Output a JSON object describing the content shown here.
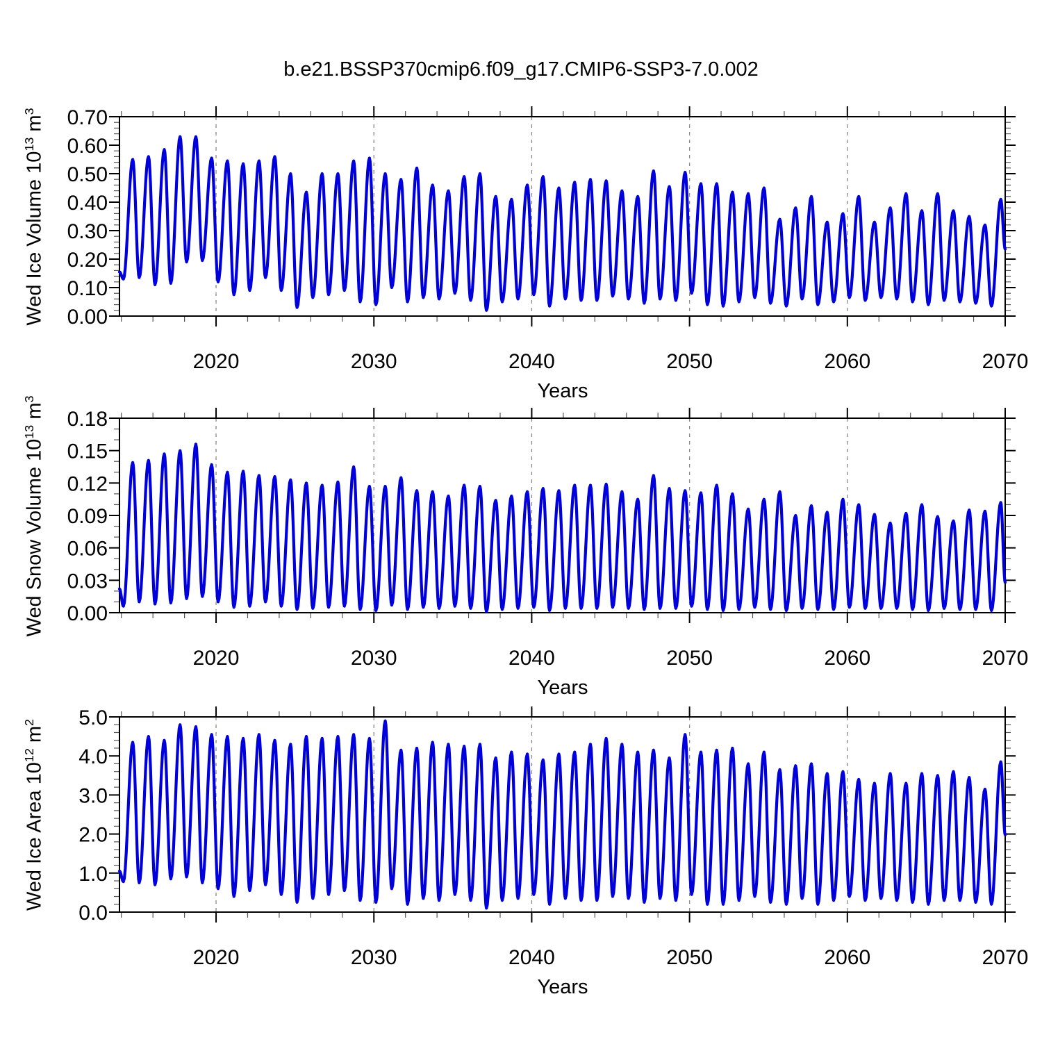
{
  "figure": {
    "title": "b.e21.BSSP370cmip6.f09_g17.CMIP6-SSP3-7.0.002",
    "background": "#ffffff",
    "axis_color": "#000000",
    "grid_color": "#888888",
    "line_color": "#0000dd"
  },
  "chart_data": [
    {
      "type": "line",
      "panel": "wed-ice-volume",
      "ylabel": {
        "base": "Wed Ice Volume 10",
        "exp": "13",
        "unit": " m",
        "unit_exp": "3"
      },
      "xlabel": "Years",
      "ylim": [
        0,
        0.7
      ],
      "ytick_values": [
        0.0,
        0.1,
        0.2,
        0.3,
        0.4,
        0.5,
        0.6,
        0.7
      ],
      "ytick_labels": [
        "0.00",
        "0.10",
        "0.20",
        "0.30",
        "0.40",
        "0.50",
        "0.60",
        "0.70"
      ],
      "y_minor_step": 0.02,
      "x_range": [
        2013.88,
        2070.0
      ],
      "xtick_years": [
        2020,
        2030,
        2040,
        2050,
        2060,
        2070
      ],
      "xtick_labels": [
        "2020",
        "2030",
        "2040",
        "2050",
        "2060",
        "2070"
      ],
      "x_minor_step": 2,
      "grid_years": [
        2020,
        2030,
        2040,
        2050,
        2060
      ],
      "series": {
        "name": "Wed Ice Volume",
        "color": "#0000dd",
        "first_year": 2014,
        "trough_frac": 0.13,
        "peak_frac": 0.72,
        "start": [
          2013.88,
          0.155
        ],
        "end": [
          2070.0,
          0.235
        ],
        "annual_peaks": [
          0.55,
          0.56,
          0.585,
          0.63,
          0.63,
          0.555,
          0.545,
          0.535,
          0.545,
          0.56,
          0.5,
          0.435,
          0.5,
          0.5,
          0.545,
          0.555,
          0.5,
          0.48,
          0.52,
          0.46,
          0.44,
          0.49,
          0.5,
          0.42,
          0.41,
          0.46,
          0.49,
          0.45,
          0.47,
          0.48,
          0.475,
          0.44,
          0.42,
          0.51,
          0.455,
          0.505,
          0.465,
          0.465,
          0.435,
          0.43,
          0.45,
          0.34,
          0.38,
          0.42,
          0.33,
          0.36,
          0.42,
          0.33,
          0.38,
          0.43,
          0.37,
          0.43,
          0.37,
          0.35,
          0.32,
          0.41
        ],
        "annual_troughs": [
          0.13,
          0.135,
          0.11,
          0.115,
          0.19,
          0.195,
          0.12,
          0.075,
          0.09,
          0.135,
          0.09,
          0.03,
          0.065,
          0.075,
          0.09,
          0.05,
          0.04,
          0.1,
          0.05,
          0.065,
          0.06,
          0.08,
          0.055,
          0.02,
          0.05,
          0.06,
          0.075,
          0.035,
          0.06,
          0.055,
          0.055,
          0.07,
          0.06,
          0.045,
          0.06,
          0.055,
          0.08,
          0.04,
          0.035,
          0.05,
          0.065,
          0.045,
          0.035,
          0.06,
          0.04,
          0.05,
          0.065,
          0.055,
          0.065,
          0.06,
          0.05,
          0.04,
          0.055,
          0.05,
          0.045,
          0.035
        ]
      }
    },
    {
      "type": "line",
      "panel": "wed-snow-volume",
      "ylabel": {
        "base": "Wed Snow Volume 10",
        "exp": "13",
        "unit": " m",
        "unit_exp": "3"
      },
      "xlabel": "Years",
      "ylim": [
        0,
        0.18
      ],
      "ytick_values": [
        0.0,
        0.03,
        0.06,
        0.09,
        0.12,
        0.15,
        0.18
      ],
      "ytick_labels": [
        "0.00",
        "0.03",
        "0.06",
        "0.09",
        "0.12",
        "0.15",
        "0.18"
      ],
      "y_minor_step": 0.01,
      "x_range": [
        2013.88,
        2070.0
      ],
      "xtick_years": [
        2020,
        2030,
        2040,
        2050,
        2060,
        2070
      ],
      "xtick_labels": [
        "2020",
        "2030",
        "2040",
        "2050",
        "2060",
        "2070"
      ],
      "x_minor_step": 2,
      "grid_years": [
        2020,
        2030,
        2040,
        2050,
        2060
      ],
      "series": {
        "name": "Wed Snow Volume",
        "color": "#0000dd",
        "first_year": 2014,
        "trough_frac": 0.13,
        "peak_frac": 0.72,
        "start": [
          2013.88,
          0.022
        ],
        "end": [
          2070.0,
          0.028
        ],
        "annual_peaks": [
          0.139,
          0.141,
          0.147,
          0.15,
          0.156,
          0.137,
          0.13,
          0.131,
          0.127,
          0.126,
          0.123,
          0.12,
          0.118,
          0.121,
          0.135,
          0.117,
          0.117,
          0.125,
          0.113,
          0.112,
          0.108,
          0.118,
          0.117,
          0.104,
          0.108,
          0.112,
          0.115,
          0.113,
          0.118,
          0.118,
          0.119,
          0.112,
          0.105,
          0.127,
          0.115,
          0.113,
          0.111,
          0.118,
          0.11,
          0.096,
          0.105,
          0.112,
          0.09,
          0.099,
          0.093,
          0.105,
          0.1,
          0.091,
          0.083,
          0.092,
          0.1,
          0.089,
          0.085,
          0.095,
          0.094,
          0.102
        ],
        "annual_troughs": [
          0.006,
          0.01,
          0.008,
          0.009,
          0.013,
          0.015,
          0.01,
          0.005,
          0.006,
          0.01,
          0.006,
          0.003,
          0.004,
          0.005,
          0.006,
          0.003,
          0.002,
          0.007,
          0.003,
          0.005,
          0.004,
          0.006,
          0.004,
          0.001,
          0.003,
          0.004,
          0.005,
          0.002,
          0.004,
          0.004,
          0.004,
          0.005,
          0.004,
          0.003,
          0.004,
          0.004,
          0.006,
          0.003,
          0.002,
          0.003,
          0.005,
          0.003,
          0.002,
          0.004,
          0.003,
          0.003,
          0.005,
          0.004,
          0.004,
          0.004,
          0.003,
          0.002,
          0.004,
          0.003,
          0.003,
          0.002
        ]
      }
    },
    {
      "type": "line",
      "panel": "wed-ice-area",
      "ylabel": {
        "base": "Wed Ice Area 10",
        "exp": "12",
        "unit": " m",
        "unit_exp": "2"
      },
      "xlabel": "Years",
      "ylim": [
        0,
        5.0
      ],
      "ytick_values": [
        0.0,
        1.0,
        2.0,
        3.0,
        4.0,
        5.0
      ],
      "ytick_labels": [
        "0.0",
        "1.0",
        "2.0",
        "3.0",
        "4.0",
        "5.0"
      ],
      "y_minor_step": 0.2,
      "x_range": [
        2013.88,
        2070.0
      ],
      "xtick_years": [
        2020,
        2030,
        2040,
        2050,
        2060,
        2070
      ],
      "xtick_labels": [
        "2020",
        "2030",
        "2040",
        "2050",
        "2060",
        "2070"
      ],
      "x_minor_step": 2,
      "grid_years": [
        2020,
        2030,
        2040,
        2050,
        2060
      ],
      "series": {
        "name": "Wed Ice Area",
        "color": "#0000dd",
        "first_year": 2014,
        "trough_frac": 0.13,
        "peak_frac": 0.72,
        "start": [
          2013.88,
          1.05
        ],
        "end": [
          2070.0,
          1.98
        ],
        "annual_peaks": [
          4.35,
          4.5,
          4.4,
          4.8,
          4.75,
          4.55,
          4.5,
          4.45,
          4.55,
          4.4,
          4.3,
          4.5,
          4.45,
          4.5,
          4.55,
          4.45,
          4.9,
          4.15,
          4.2,
          4.35,
          4.3,
          4.25,
          4.3,
          3.95,
          4.1,
          4.05,
          3.9,
          4.05,
          4.1,
          4.3,
          4.45,
          4.3,
          4.1,
          4.15,
          3.95,
          4.55,
          4.1,
          4.15,
          4.2,
          3.8,
          4.1,
          3.65,
          3.75,
          3.8,
          3.55,
          3.6,
          3.4,
          3.3,
          3.55,
          3.3,
          3.55,
          3.5,
          3.6,
          3.45,
          3.15,
          3.85
        ],
        "annual_troughs": [
          0.78,
          0.75,
          0.7,
          0.85,
          0.9,
          0.75,
          0.6,
          0.4,
          0.55,
          0.7,
          0.45,
          0.25,
          0.35,
          0.45,
          0.55,
          0.3,
          0.25,
          0.6,
          0.2,
          0.35,
          0.3,
          0.45,
          0.3,
          0.1,
          0.3,
          0.35,
          0.45,
          0.2,
          0.35,
          0.3,
          0.3,
          0.4,
          0.35,
          0.25,
          0.35,
          0.3,
          0.45,
          0.2,
          0.2,
          0.3,
          0.4,
          0.25,
          0.2,
          0.35,
          0.2,
          0.3,
          0.4,
          0.3,
          0.35,
          0.3,
          0.25,
          0.2,
          0.3,
          0.3,
          0.25,
          0.2
        ]
      }
    }
  ]
}
